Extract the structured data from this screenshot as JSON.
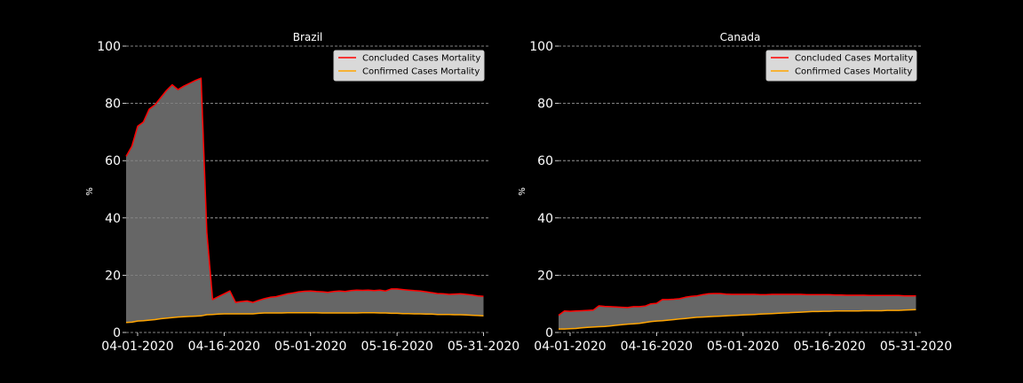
{
  "chart_data": [
    {
      "type": "area",
      "title": "Brazil",
      "ylabel": "%",
      "ylim": [
        0,
        100
      ],
      "yticks": [
        0,
        20,
        40,
        60,
        80,
        100
      ],
      "xlim": [
        "03-30-2020",
        "06-01-2020"
      ],
      "xticks": [
        "04-01-2020",
        "04-16-2020",
        "05-01-2020",
        "05-16-2020",
        "05-31-2020"
      ],
      "grid": "y-dashed",
      "legend_position": "top-right",
      "series": [
        {
          "name": "Concluded Cases Mortality",
          "color": "#ff0000",
          "x": [
            "03-30-2020",
            "03-31-2020",
            "04-01-2020",
            "04-02-2020",
            "04-03-2020",
            "04-04-2020",
            "04-05-2020",
            "04-06-2020",
            "04-07-2020",
            "04-08-2020",
            "04-09-2020",
            "04-10-2020",
            "04-11-2020",
            "04-12-2020",
            "04-13-2020",
            "04-14-2020",
            "04-15-2020",
            "04-16-2020",
            "04-17-2020",
            "04-18-2020",
            "04-19-2020",
            "04-20-2020",
            "04-21-2020",
            "04-22-2020",
            "04-23-2020",
            "04-24-2020",
            "04-25-2020",
            "04-26-2020",
            "04-27-2020",
            "04-28-2020",
            "04-29-2020",
            "04-30-2020",
            "05-01-2020",
            "05-02-2020",
            "05-03-2020",
            "05-04-2020",
            "05-05-2020",
            "05-06-2020",
            "05-07-2020",
            "05-08-2020",
            "05-09-2020",
            "05-10-2020",
            "05-11-2020",
            "05-12-2020",
            "05-13-2020",
            "05-14-2020",
            "05-15-2020",
            "05-16-2020",
            "05-17-2020",
            "05-18-2020",
            "05-19-2020",
            "05-20-2020",
            "05-21-2020",
            "05-22-2020",
            "05-23-2020",
            "05-24-2020",
            "05-25-2020",
            "05-26-2020",
            "05-27-2020",
            "05-28-2020",
            "05-29-2020",
            "05-30-2020",
            "05-31-2020"
          ],
          "values": [
            61.5,
            65,
            72,
            73.5,
            78,
            79.5,
            82,
            84.5,
            86.5,
            84.8,
            86,
            87,
            88,
            88.8,
            35,
            11.5,
            12.5,
            13.5,
            14.5,
            10.5,
            10.8,
            11,
            10.5,
            11.2,
            11.8,
            12.3,
            12.5,
            13,
            13.5,
            13.8,
            14.2,
            14.4,
            14.5,
            14.3,
            14.2,
            14,
            14.3,
            14.5,
            14.3,
            14.6,
            14.8,
            14.7,
            14.8,
            14.6,
            14.8,
            14.5,
            15.2,
            15.2,
            15,
            14.8,
            14.6,
            14.5,
            14.2,
            13.9,
            13.6,
            13.5,
            13.3,
            13.4,
            13.5,
            13.3,
            13.1,
            12.8,
            12.6
          ]
        },
        {
          "name": "Confirmed Cases Mortality",
          "color": "#ffa500",
          "x": [
            "03-30-2020",
            "03-31-2020",
            "04-01-2020",
            "04-02-2020",
            "04-03-2020",
            "04-04-2020",
            "04-05-2020",
            "04-06-2020",
            "04-07-2020",
            "04-08-2020",
            "04-09-2020",
            "04-10-2020",
            "04-11-2020",
            "04-12-2020",
            "04-13-2020",
            "04-14-2020",
            "04-15-2020",
            "04-16-2020",
            "04-17-2020",
            "04-18-2020",
            "04-19-2020",
            "04-20-2020",
            "04-21-2020",
            "04-22-2020",
            "04-23-2020",
            "04-24-2020",
            "04-25-2020",
            "04-26-2020",
            "04-27-2020",
            "04-28-2020",
            "04-29-2020",
            "04-30-2020",
            "05-01-2020",
            "05-02-2020",
            "05-03-2020",
            "05-04-2020",
            "05-05-2020",
            "05-06-2020",
            "05-07-2020",
            "05-08-2020",
            "05-09-2020",
            "05-10-2020",
            "05-11-2020",
            "05-12-2020",
            "05-13-2020",
            "05-14-2020",
            "05-15-2020",
            "05-16-2020",
            "05-17-2020",
            "05-18-2020",
            "05-19-2020",
            "05-20-2020",
            "05-21-2020",
            "05-22-2020",
            "05-23-2020",
            "05-24-2020",
            "05-25-2020",
            "05-26-2020",
            "05-27-2020",
            "05-28-2020",
            "05-29-2020",
            "05-30-2020",
            "05-31-2020"
          ],
          "values": [
            3.5,
            3.6,
            4,
            4.1,
            4.3,
            4.5,
            4.8,
            5,
            5.2,
            5.4,
            5.5,
            5.6,
            5.7,
            5.8,
            6.2,
            6.3,
            6.4,
            6.5,
            6.5,
            6.5,
            6.5,
            6.5,
            6.5,
            6.7,
            6.8,
            6.8,
            6.8,
            6.8,
            6.9,
            6.9,
            6.9,
            6.9,
            6.9,
            6.9,
            6.8,
            6.8,
            6.8,
            6.8,
            6.8,
            6.8,
            6.8,
            6.9,
            6.9,
            6.9,
            6.8,
            6.8,
            6.7,
            6.7,
            6.6,
            6.6,
            6.5,
            6.5,
            6.4,
            6.4,
            6.3,
            6.3,
            6.3,
            6.2,
            6.2,
            6.1,
            6.0,
            5.9,
            5.8
          ]
        }
      ]
    },
    {
      "type": "area",
      "title": "Canada",
      "ylabel": "%",
      "ylim": [
        0,
        100
      ],
      "yticks": [
        0,
        20,
        40,
        60,
        80,
        100
      ],
      "xlim": [
        "03-30-2020",
        "06-01-2020"
      ],
      "xticks": [
        "04-01-2020",
        "04-16-2020",
        "05-01-2020",
        "05-16-2020",
        "05-31-2020"
      ],
      "grid": "y-dashed",
      "legend_position": "top-right",
      "series": [
        {
          "name": "Concluded Cases Mortality",
          "color": "#ff0000",
          "x": [
            "03-30-2020",
            "03-31-2020",
            "04-01-2020",
            "04-02-2020",
            "04-03-2020",
            "04-04-2020",
            "04-05-2020",
            "04-06-2020",
            "04-07-2020",
            "04-08-2020",
            "04-09-2020",
            "04-10-2020",
            "04-11-2020",
            "04-12-2020",
            "04-13-2020",
            "04-14-2020",
            "04-15-2020",
            "04-16-2020",
            "04-17-2020",
            "04-18-2020",
            "04-19-2020",
            "04-20-2020",
            "04-21-2020",
            "04-22-2020",
            "04-23-2020",
            "04-24-2020",
            "04-25-2020",
            "04-26-2020",
            "04-27-2020",
            "04-28-2020",
            "04-29-2020",
            "04-30-2020",
            "05-01-2020",
            "05-02-2020",
            "05-03-2020",
            "05-04-2020",
            "05-05-2020",
            "05-06-2020",
            "05-07-2020",
            "05-08-2020",
            "05-09-2020",
            "05-10-2020",
            "05-11-2020",
            "05-12-2020",
            "05-13-2020",
            "05-14-2020",
            "05-15-2020",
            "05-16-2020",
            "05-17-2020",
            "05-18-2020",
            "05-19-2020",
            "05-20-2020",
            "05-21-2020",
            "05-22-2020",
            "05-23-2020",
            "05-24-2020",
            "05-25-2020",
            "05-26-2020",
            "05-27-2020",
            "05-28-2020",
            "05-29-2020",
            "05-30-2020",
            "05-31-2020"
          ],
          "values": [
            6,
            7.5,
            7.4,
            7.5,
            7.6,
            7.7,
            7.8,
            9.3,
            9.1,
            9,
            8.9,
            8.8,
            8.7,
            9,
            9,
            9.2,
            10,
            10.2,
            11.5,
            11.5,
            11.6,
            11.8,
            12.3,
            12.6,
            12.8,
            13.2,
            13.5,
            13.6,
            13.6,
            13.4,
            13.3,
            13.3,
            13.3,
            13.3,
            13.3,
            13.2,
            13.2,
            13.3,
            13.3,
            13.3,
            13.3,
            13.3,
            13.3,
            13.2,
            13.2,
            13.2,
            13.2,
            13.2,
            13.1,
            13.1,
            13,
            13,
            13,
            13,
            12.9,
            12.9,
            12.9,
            12.9,
            12.9,
            12.9,
            12.8,
            12.8,
            12.8
          ]
        },
        {
          "name": "Confirmed Cases Mortality",
          "color": "#ffa500",
          "x": [
            "03-30-2020",
            "03-31-2020",
            "04-01-2020",
            "04-02-2020",
            "04-03-2020",
            "04-04-2020",
            "04-05-2020",
            "04-06-2020",
            "04-07-2020",
            "04-08-2020",
            "04-09-2020",
            "04-10-2020",
            "04-11-2020",
            "04-12-2020",
            "04-13-2020",
            "04-14-2020",
            "04-15-2020",
            "04-16-2020",
            "04-17-2020",
            "04-18-2020",
            "04-19-2020",
            "04-20-2020",
            "04-21-2020",
            "04-22-2020",
            "04-23-2020",
            "04-24-2020",
            "04-25-2020",
            "04-26-2020",
            "04-27-2020",
            "04-28-2020",
            "04-29-2020",
            "04-30-2020",
            "05-01-2020",
            "05-02-2020",
            "05-03-2020",
            "05-04-2020",
            "05-05-2020",
            "05-06-2020",
            "05-07-2020",
            "05-08-2020",
            "05-09-2020",
            "05-10-2020",
            "05-11-2020",
            "05-12-2020",
            "05-13-2020",
            "05-14-2020",
            "05-15-2020",
            "05-16-2020",
            "05-17-2020",
            "05-18-2020",
            "05-19-2020",
            "05-20-2020",
            "05-21-2020",
            "05-22-2020",
            "05-23-2020",
            "05-24-2020",
            "05-25-2020",
            "05-26-2020",
            "05-27-2020",
            "05-28-2020",
            "05-29-2020",
            "05-30-2020",
            "05-31-2020"
          ],
          "values": [
            1.2,
            1.2,
            1.3,
            1.4,
            1.6,
            1.8,
            1.9,
            2,
            2.1,
            2.3,
            2.5,
            2.7,
            2.9,
            3,
            3.2,
            3.5,
            3.8,
            4,
            4.1,
            4.3,
            4.5,
            4.7,
            4.9,
            5.1,
            5.3,
            5.4,
            5.5,
            5.6,
            5.7,
            5.8,
            5.9,
            6,
            6.1,
            6.2,
            6.3,
            6.4,
            6.5,
            6.6,
            6.7,
            6.8,
            6.9,
            7,
            7.1,
            7.2,
            7.3,
            7.3,
            7.4,
            7.4,
            7.5,
            7.5,
            7.5,
            7.5,
            7.5,
            7.6,
            7.6,
            7.6,
            7.6,
            7.7,
            7.7,
            7.7,
            7.8,
            7.9,
            8
          ]
        }
      ]
    }
  ]
}
